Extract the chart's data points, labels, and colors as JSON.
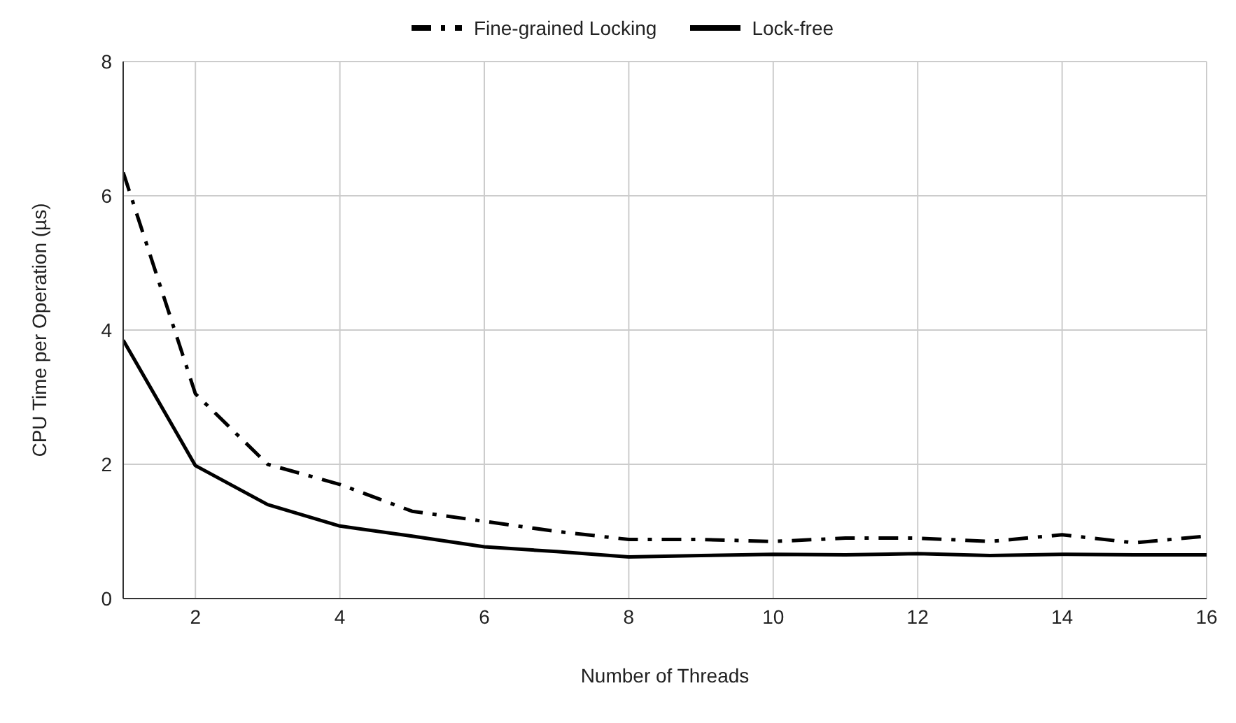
{
  "chart_data": {
    "type": "line",
    "xlabel": "Number of Threads",
    "ylabel": "CPU Time per Operation (µs)",
    "x": [
      1,
      2,
      3,
      4,
      5,
      6,
      7,
      8,
      9,
      10,
      11,
      12,
      13,
      14,
      15,
      16
    ],
    "series": [
      {
        "name": "Fine-grained Locking",
        "color": "#000000",
        "line_style": "dashed",
        "values": [
          6.35,
          3.05,
          2.0,
          1.7,
          1.3,
          1.15,
          1.0,
          0.88,
          0.88,
          0.85,
          0.9,
          0.9,
          0.85,
          0.95,
          0.83,
          0.93
        ]
      },
      {
        "name": "Lock-free",
        "color": "#000000",
        "line_style": "solid",
        "values": [
          3.85,
          1.98,
          1.4,
          1.08,
          0.93,
          0.77,
          0.7,
          0.62,
          0.64,
          0.66,
          0.65,
          0.67,
          0.64,
          0.66,
          0.65,
          0.65
        ]
      }
    ],
    "xlim": [
      1,
      16
    ],
    "xticks": [
      2,
      4,
      6,
      8,
      10,
      12,
      14,
      16
    ],
    "ylim": [
      0,
      8
    ],
    "yticks": [
      0,
      2,
      4,
      6,
      8
    ],
    "grid": true,
    "legend": "top",
    "marker": "none"
  }
}
